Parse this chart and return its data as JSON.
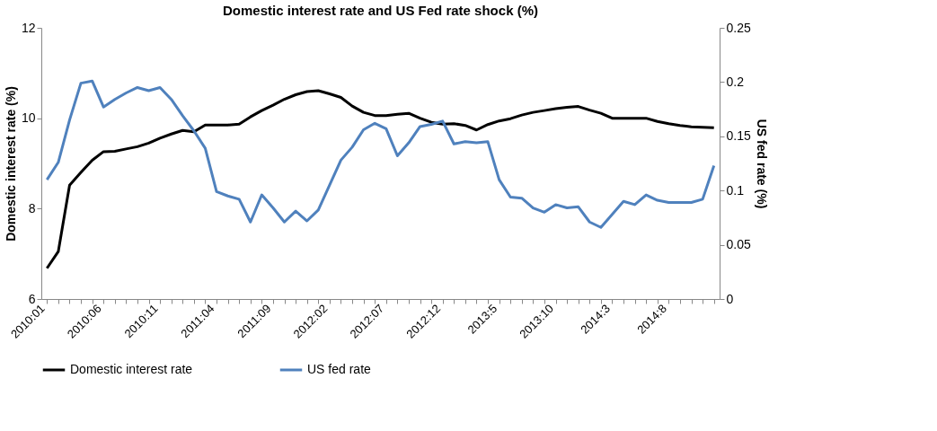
{
  "chart_data": {
    "type": "line",
    "title": "Domestic interest rate and US Fed rate shock (%)",
    "ylabel": "Domestic interest rate (%)",
    "y2label": "US fed rate (%)",
    "categories": [
      "2010:01",
      null,
      null,
      null,
      null,
      "2010:06",
      null,
      null,
      null,
      null,
      "2010:11",
      null,
      null,
      null,
      null,
      "2011:04",
      null,
      null,
      null,
      null,
      "2011:09",
      null,
      null,
      null,
      null,
      "2012:02",
      null,
      null,
      null,
      null,
      "2012:07",
      null,
      null,
      null,
      null,
      "2012:12",
      null,
      null,
      null,
      null,
      "2013:5",
      null,
      null,
      null,
      null,
      "2013:10",
      null,
      null,
      null,
      null,
      "2014:3",
      null,
      null,
      null,
      null,
      "2014:8",
      null,
      null,
      null,
      null
    ],
    "series": [
      {
        "name": "Domestic interest rate",
        "color": "#000000",
        "values": [
          6.68,
          7.05,
          8.52,
          8.8,
          9.07,
          9.26,
          9.27,
          9.32,
          9.37,
          9.45,
          9.56,
          9.65,
          9.73,
          9.7,
          9.85,
          9.85,
          9.85,
          9.87,
          10.03,
          10.17,
          10.29,
          10.42,
          10.52,
          10.59,
          10.61,
          10.54,
          10.46,
          10.27,
          10.13,
          10.06,
          10.06,
          10.09,
          10.11,
          10.0,
          9.91,
          9.87,
          9.88,
          9.84,
          9.74,
          9.86,
          9.94,
          9.99,
          10.07,
          10.13,
          10.17,
          10.21,
          10.24,
          10.26,
          10.18,
          10.11,
          10.0,
          10.0,
          10.0,
          10.0,
          9.93,
          9.88,
          9.84,
          9.81,
          9.8,
          9.79
        ]
      },
      {
        "name": "US fed rate",
        "color": "#4f81bd",
        "axis": "y2",
        "values": [
          0.11,
          0.126,
          0.165,
          0.199,
          0.201,
          0.177,
          0.184,
          0.19,
          0.195,
          0.192,
          0.195,
          0.184,
          0.169,
          0.155,
          0.139,
          0.099,
          0.095,
          0.092,
          0.071,
          0.096,
          0.084,
          0.071,
          0.081,
          0.072,
          0.082,
          0.105,
          0.128,
          0.14,
          0.156,
          0.162,
          0.157,
          0.132,
          0.144,
          0.159,
          0.161,
          0.164,
          0.143,
          0.145,
          0.144,
          0.145,
          0.11,
          0.094,
          0.093,
          0.084,
          0.08,
          0.087,
          0.084,
          0.085,
          0.071,
          0.066,
          0.078,
          0.09,
          0.087,
          0.096,
          0.091,
          0.089,
          0.089,
          0.089,
          0.092,
          0.123
        ]
      }
    ],
    "ylim": [
      6,
      12
    ],
    "yticks": [
      6,
      8,
      10,
      12
    ],
    "y2lim": [
      0,
      0.25
    ],
    "y2ticks": [
      0,
      0.05,
      0.1,
      0.15,
      0.2,
      0.25
    ],
    "grid": false,
    "legend": "bottom",
    "marker": "none",
    "line_style": "solid"
  }
}
